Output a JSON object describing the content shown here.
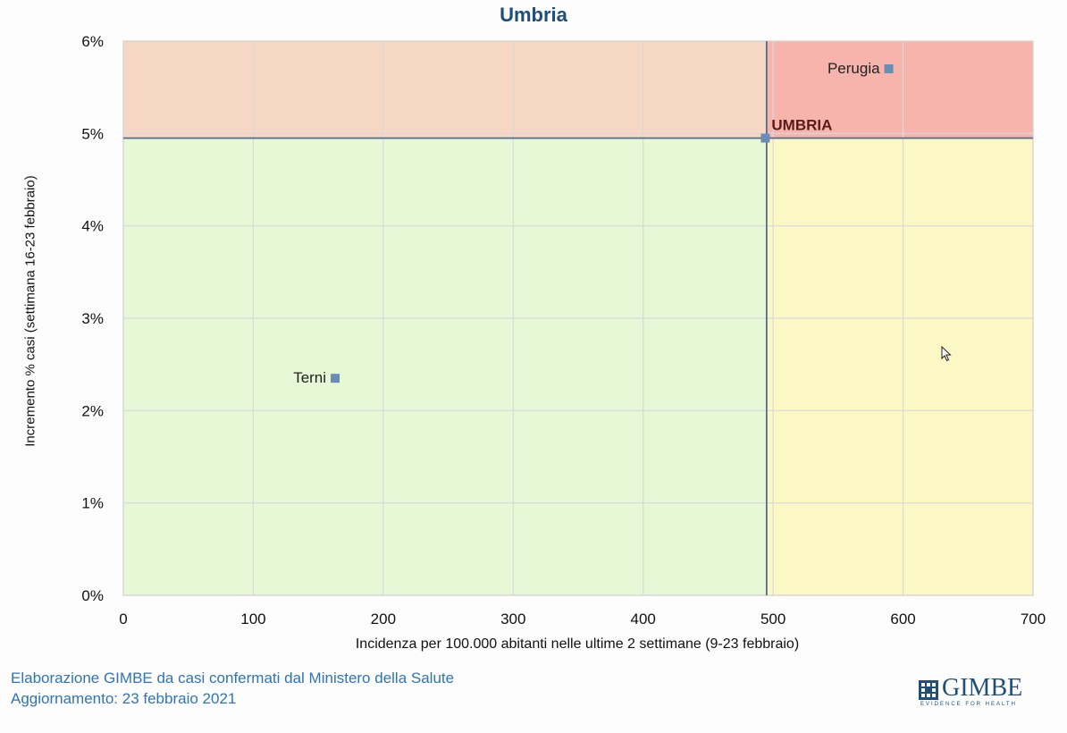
{
  "chart_data": {
    "type": "scatter",
    "title": "Umbria",
    "xlabel": "Incidenza per 100.000 abitanti nelle ultime 2 settimane (9-23 febbraio)",
    "ylabel": "Incremento % casi (settimana 16-23 febbraio)",
    "xlim": [
      0,
      700
    ],
    "ylim": [
      0,
      6
    ],
    "x_ticks": [
      0,
      100,
      200,
      300,
      400,
      500,
      600,
      700
    ],
    "x_tick_labels": [
      "0",
      "100",
      "200",
      "300",
      "400",
      "500",
      "600",
      "700"
    ],
    "y_ticks": [
      0,
      1,
      2,
      3,
      4,
      5,
      6
    ],
    "y_tick_labels": [
      "0%",
      "1%",
      "2%",
      "3%",
      "4%",
      "5%",
      "6%"
    ],
    "grid": true,
    "thresholds": {
      "x": 495,
      "y": 4.95
    },
    "quadrant_colors": {
      "low_low": "#e6f8d6",
      "high_low": "#fbf8c5",
      "low_high": "#f6d7c4",
      "high_high": "#f7b4ad"
    },
    "points": [
      {
        "label": "Perugia",
        "x": 589,
        "y": 5.7
      },
      {
        "label": "Terni",
        "x": 163,
        "y": 2.35
      },
      {
        "label": "UMBRIA",
        "x": 494,
        "y": 4.95,
        "bold": true
      }
    ],
    "marker_color": "#6b8db5",
    "line_color": "#4f6d8f"
  },
  "footer": {
    "source": "Elaborazione GIMBE da casi confermati dal Ministero della Salute",
    "updated": "Aggiornamento: 23 febbraio 2021"
  },
  "logo": {
    "name": "GIMBE",
    "tagline": "EVIDENCE FOR HEALTH"
  },
  "icons": {
    "cursor": "mouse-pointer-icon"
  }
}
